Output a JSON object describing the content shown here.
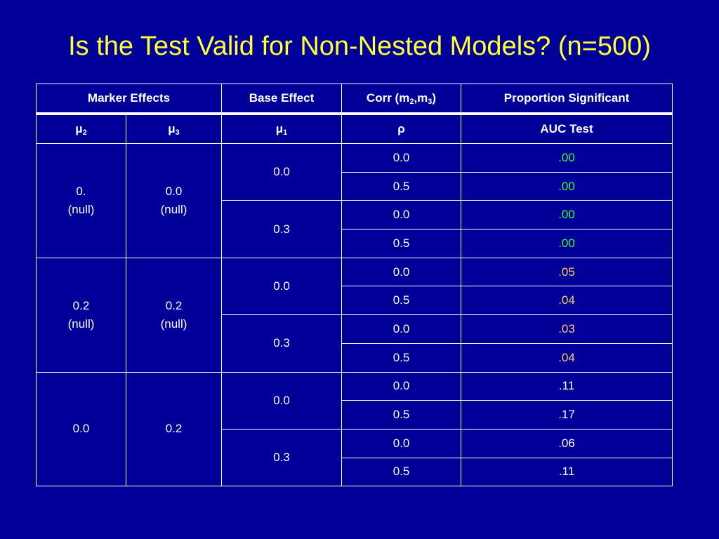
{
  "title": "Is the Test Valid for Non-Nested Models? (n=500)",
  "header": {
    "marker_effects": "Marker Effects",
    "base_effect": "Base Effect",
    "corr_prefix": "Corr (m",
    "corr_sub1": "2",
    "corr_mid": ",m",
    "corr_sub2": "3",
    "corr_suffix": ")",
    "proportion_significant": "Proportion Significant"
  },
  "subheader": {
    "mu2": "μ",
    "mu2_sub": "2",
    "mu3": "μ",
    "mu3_sub": "3",
    "mu1": "μ",
    "mu1_sub": "1",
    "rho": "ρ",
    "auc": "AUC Test"
  },
  "colors": {
    "background": "#000099",
    "title": "#ffff33",
    "green": "#33ff33",
    "orange": "#ffcc66",
    "white": "#ffffff"
  },
  "groups": [
    {
      "mu2_line1": "0.",
      "mu2_line2": "(null)",
      "mu3_line1": "0.0",
      "mu3_line2": "(null)",
      "bases": [
        {
          "mu1": "0.0",
          "rows": [
            {
              "rho": "0.0",
              "auc": ".00",
              "color": "green"
            },
            {
              "rho": "0.5",
              "auc": ".00",
              "color": "green"
            }
          ]
        },
        {
          "mu1": "0.3",
          "rows": [
            {
              "rho": "0.0",
              "auc": ".00",
              "color": "green"
            },
            {
              "rho": "0.5",
              "auc": ".00",
              "color": "green"
            }
          ]
        }
      ]
    },
    {
      "mu2_line1": "0.2",
      "mu2_line2": "(null)",
      "mu3_line1": "0.2",
      "mu3_line2": "(null)",
      "bases": [
        {
          "mu1": "0.0",
          "rows": [
            {
              "rho": "0.0",
              "auc": ".05",
              "color": "orange"
            },
            {
              "rho": "0.5",
              "auc": ".04",
              "color": "orange"
            }
          ]
        },
        {
          "mu1": "0.3",
          "rows": [
            {
              "rho": "0.0",
              "auc": ".03",
              "color": "orange"
            },
            {
              "rho": "0.5",
              "auc": ".04",
              "color": "orange"
            }
          ]
        }
      ]
    },
    {
      "mu2_line1": "0.0",
      "mu2_line2": "",
      "mu3_line1": "0.2",
      "mu3_line2": "",
      "bases": [
        {
          "mu1": "0.0",
          "rows": [
            {
              "rho": "0.0",
              "auc": ".11",
              "color": "white"
            },
            {
              "rho": "0.5",
              "auc": ".17",
              "color": "white"
            }
          ]
        },
        {
          "mu1": "0.3",
          "rows": [
            {
              "rho": "0.0",
              "auc": ".06",
              "color": "white"
            },
            {
              "rho": "0.5",
              "auc": ".11",
              "color": "white"
            }
          ]
        }
      ]
    }
  ]
}
